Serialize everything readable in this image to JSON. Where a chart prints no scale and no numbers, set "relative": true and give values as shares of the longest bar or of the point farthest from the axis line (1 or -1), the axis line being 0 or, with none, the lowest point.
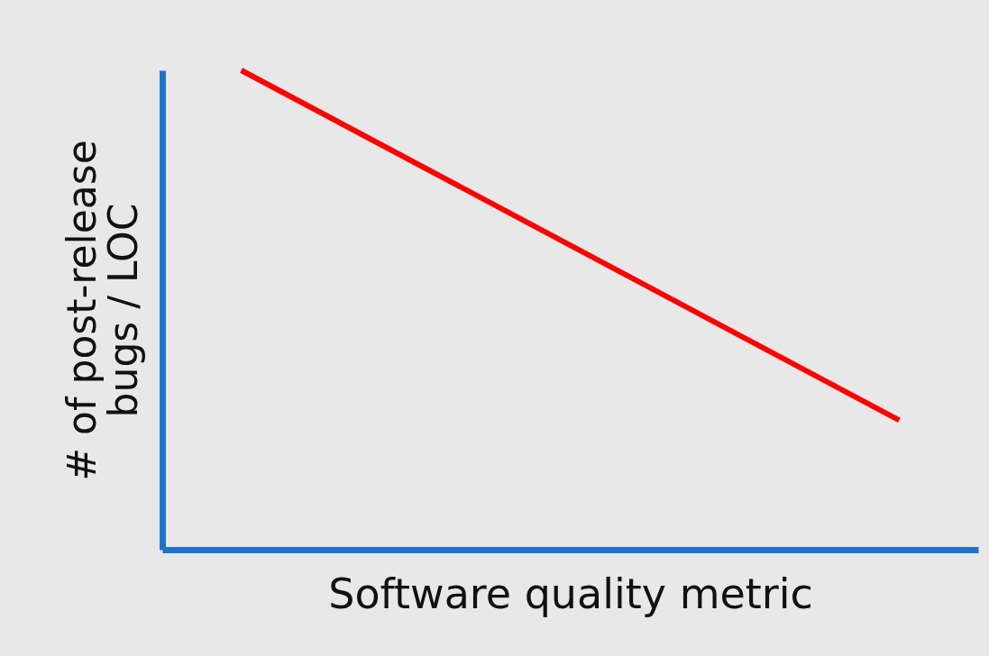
{
  "chart_data": {
    "type": "line",
    "relative": true,
    "xlabel": "Software quality metric",
    "ylabel": "# of post-release bugs / LOC",
    "categories": [
      null,
      null
    ],
    "series": [
      {
        "color": "#ff0000",
        "values": [
          1,
          0.27
        ]
      }
    ],
    "marker": "none",
    "line_style": "solid",
    "grid": false,
    "legend": false,
    "tick_labels": false
  }
}
